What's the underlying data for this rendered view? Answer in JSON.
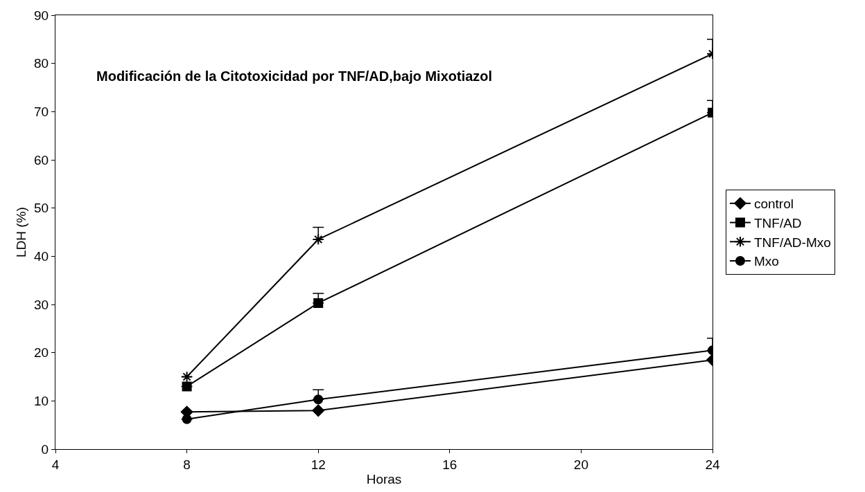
{
  "chart_data": {
    "type": "line",
    "xlabel": "Horas",
    "ylabel": "LDH (%)",
    "annotations": [
      "Modificación de la Citotoxicidad por TNF/AD,bajo Mixotiazol"
    ],
    "x": [
      8,
      12,
      24
    ],
    "series": [
      {
        "name": "control",
        "color": "#000000",
        "marker": "diamond",
        "values": [
          7.7,
          8,
          18.5
        ]
      },
      {
        "name": "TNF/AD",
        "color": "#000000",
        "marker": "square",
        "values": [
          13,
          30.3,
          69.8
        ],
        "errors": [
          null,
          [
            30.3,
            32.3
          ],
          [
            69.8,
            72.3
          ]
        ]
      },
      {
        "name": "TNF/AD-Mxo",
        "color": "#000000",
        "marker": "cross",
        "values": [
          15,
          43.5,
          82
        ],
        "errors": [
          null,
          [
            43.5,
            46
          ],
          [
            82,
            85
          ]
        ]
      },
      {
        "name": "Mxo",
        "color": "#000000",
        "marker": "circle",
        "values": [
          6.2,
          10.3,
          20.5
        ],
        "errors": [
          null,
          [
            10.3,
            12.3
          ],
          [
            20.5,
            23
          ]
        ]
      }
    ],
    "xlim": [
      4,
      24
    ],
    "xticks": [
      4,
      8,
      12,
      16,
      20,
      24
    ],
    "ylim": [
      0,
      90
    ],
    "yticks": [
      0,
      10,
      20,
      30,
      40,
      50,
      60,
      70,
      80,
      90
    ],
    "legend": "right",
    "line_style": "solid"
  }
}
